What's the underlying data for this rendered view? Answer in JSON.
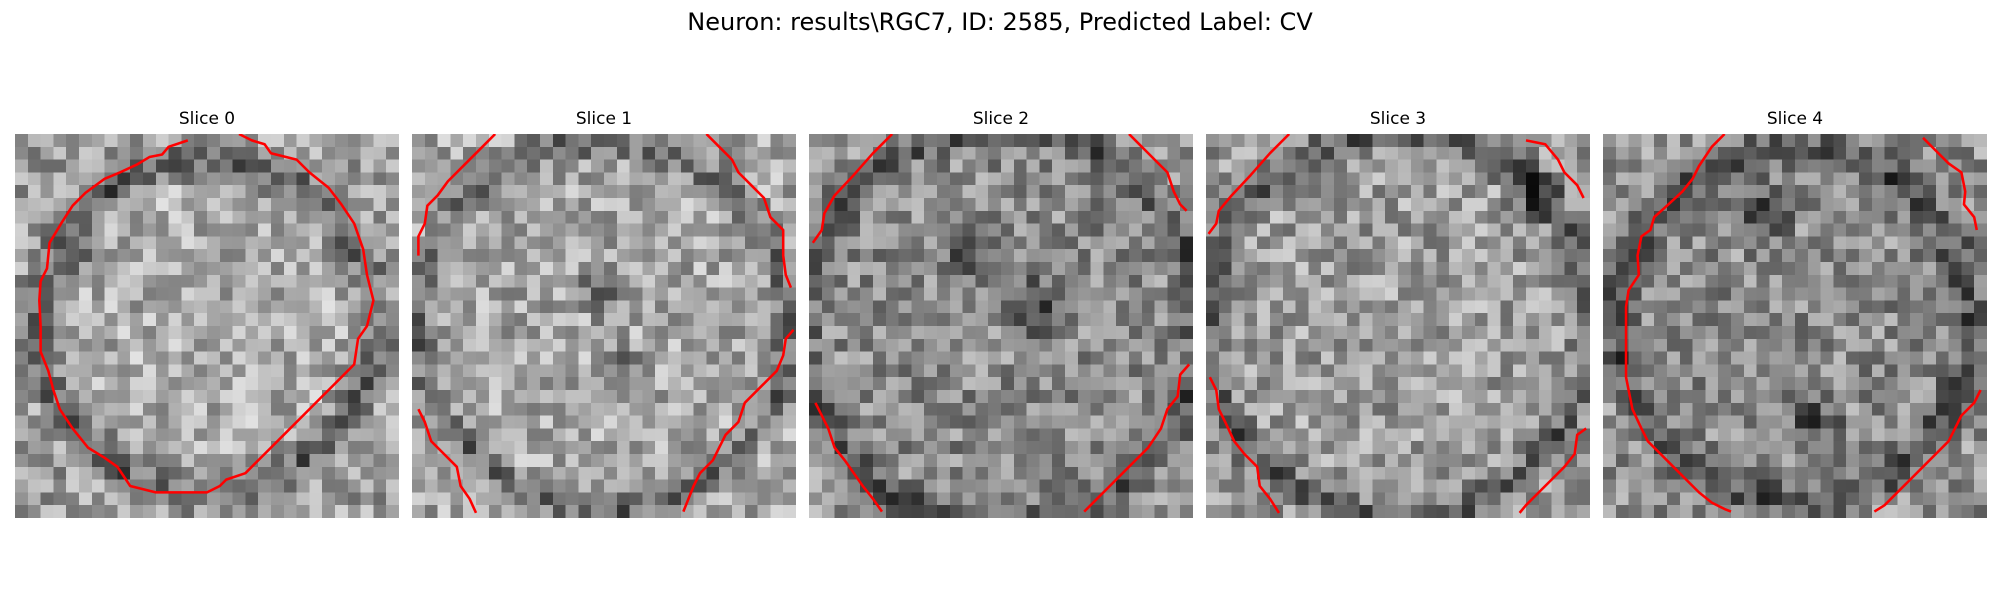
{
  "figure": {
    "title": "Neuron: results\\RGC7, ID: 2585, Predicted Label: CV"
  },
  "panels": [
    {
      "title": "Slice 0"
    },
    {
      "title": "Slice 1"
    },
    {
      "title": "Slice 2"
    },
    {
      "title": "Slice 3"
    },
    {
      "title": "Slice 4"
    }
  ],
  "image_style": {
    "colormap": "gray",
    "contour_color": "#ff0000",
    "grid_cells": 30
  }
}
